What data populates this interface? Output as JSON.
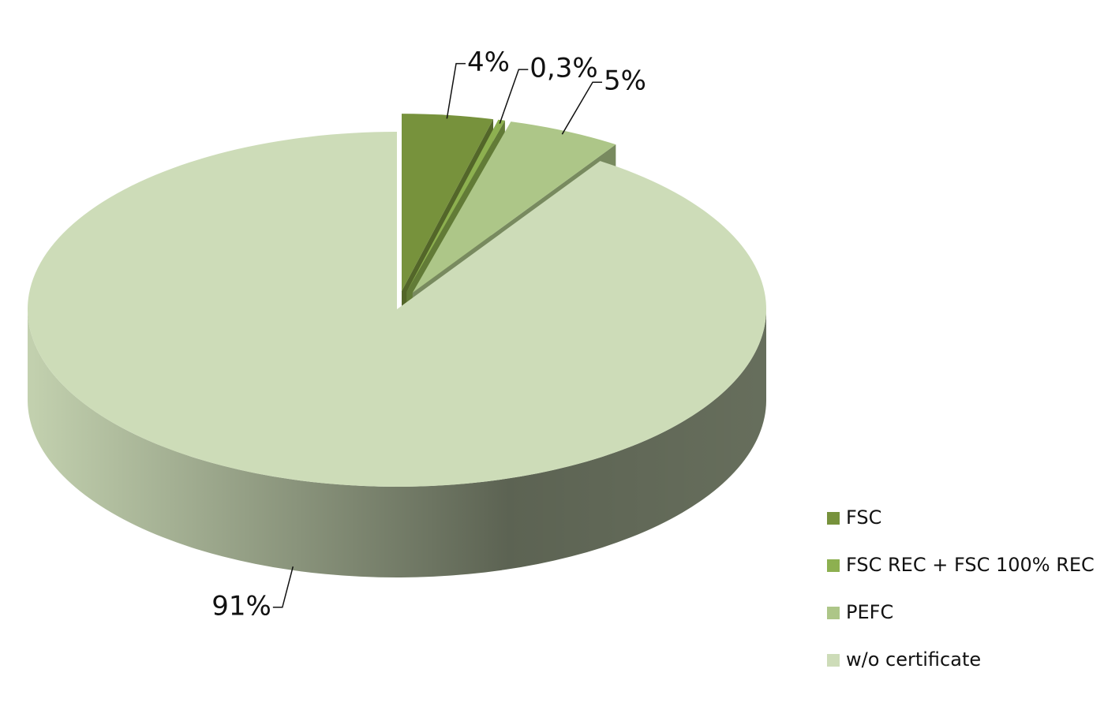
{
  "chart_data": {
    "type": "pie",
    "categories": [
      "FSC",
      "FSC REC + FSC 100% REC",
      "PEFC",
      "w/o certificate"
    ],
    "values": [
      4,
      0.3,
      5,
      91
    ],
    "value_labels": [
      "4%",
      "0,3%",
      "5%",
      "91%"
    ],
    "colors": [
      "#77923c",
      "#8db050",
      "#adc688",
      "#cddcb8"
    ],
    "legend": "right"
  }
}
